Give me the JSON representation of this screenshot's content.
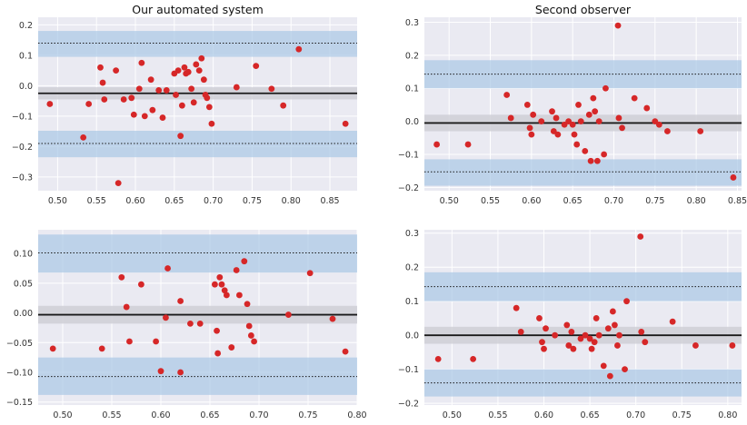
{
  "colors": {
    "axes_bg": "#eaeaf2",
    "grid": "#ffffff",
    "band_loa": "#a9c8e6",
    "band_mean": "#cfcfd6",
    "point": "#d62728",
    "mean_line": "#1a1a1a",
    "loa_line": "#1a1a1a",
    "tick_text": "#333333",
    "title_text": "#111111"
  },
  "chart_data": [
    {
      "type": "scatter",
      "title": "Our automated system",
      "xlabel": "",
      "ylabel": "",
      "xlim": [
        0.475,
        0.885
      ],
      "ylim": [
        -0.345,
        0.225
      ],
      "xticks": [
        0.5,
        0.55,
        0.6,
        0.65,
        0.7,
        0.75,
        0.8,
        0.85
      ],
      "xtick_labels": [
        "0.50",
        "0.55",
        "0.60",
        "0.65",
        "0.70",
        "0.75",
        "0.80",
        "0.85"
      ],
      "yticks": [
        -0.3,
        -0.2,
        -0.1,
        0.0,
        0.1,
        0.2
      ],
      "ytick_labels": [
        "−0.3",
        "−0.2",
        "−0.1",
        "0.0",
        "0.1",
        "0.2"
      ],
      "mean": -0.025,
      "mean_band": [
        -0.045,
        -0.005
      ],
      "upper_loa": 0.14,
      "upper_band": [
        0.095,
        0.18
      ],
      "lower_loa": -0.19,
      "lower_band": [
        -0.235,
        -0.148
      ],
      "points": [
        [
          0.49,
          -0.06
        ],
        [
          0.533,
          -0.17
        ],
        [
          0.54,
          -0.06
        ],
        [
          0.555,
          0.06
        ],
        [
          0.558,
          0.01
        ],
        [
          0.56,
          -0.045
        ],
        [
          0.575,
          0.05
        ],
        [
          0.578,
          -0.32
        ],
        [
          0.585,
          -0.045
        ],
        [
          0.595,
          -0.04
        ],
        [
          0.598,
          -0.095
        ],
        [
          0.605,
          -0.01
        ],
        [
          0.608,
          0.075
        ],
        [
          0.612,
          -0.1
        ],
        [
          0.62,
          0.02
        ],
        [
          0.622,
          -0.08
        ],
        [
          0.63,
          -0.015
        ],
        [
          0.635,
          -0.105
        ],
        [
          0.64,
          -0.015
        ],
        [
          0.65,
          0.04
        ],
        [
          0.652,
          -0.03
        ],
        [
          0.655,
          0.05
        ],
        [
          0.658,
          -0.165
        ],
        [
          0.66,
          -0.065
        ],
        [
          0.663,
          0.06
        ],
        [
          0.665,
          0.04
        ],
        [
          0.668,
          0.045
        ],
        [
          0.672,
          -0.01
        ],
        [
          0.675,
          -0.055
        ],
        [
          0.678,
          0.07
        ],
        [
          0.682,
          0.05
        ],
        [
          0.685,
          0.09
        ],
        [
          0.688,
          0.02
        ],
        [
          0.69,
          -0.03
        ],
        [
          0.692,
          -0.04
        ],
        [
          0.695,
          -0.07
        ],
        [
          0.698,
          -0.125
        ],
        [
          0.73,
          -0.005
        ],
        [
          0.755,
          0.065
        ],
        [
          0.775,
          -0.01
        ],
        [
          0.79,
          -0.065
        ],
        [
          0.81,
          0.12
        ],
        [
          0.87,
          -0.125
        ]
      ]
    },
    {
      "type": "scatter",
      "title": "Second observer",
      "xlabel": "",
      "ylabel": "",
      "xlim": [
        0.47,
        0.855
      ],
      "ylim": [
        -0.21,
        0.315
      ],
      "xticks": [
        0.5,
        0.55,
        0.6,
        0.65,
        0.7,
        0.75,
        0.8,
        0.85
      ],
      "xtick_labels": [
        "0.50",
        "0.55",
        "0.60",
        "0.65",
        "0.70",
        "0.75",
        "0.80",
        "0.85"
      ],
      "yticks": [
        -0.2,
        -0.1,
        0.0,
        0.1,
        0.2,
        0.3
      ],
      "ytick_labels": [
        "−0.2",
        "−0.1",
        "0.0",
        "0.1",
        "0.2",
        "0.3"
      ],
      "mean": -0.005,
      "mean_band": [
        -0.03,
        0.02
      ],
      "upper_loa": 0.143,
      "upper_band": [
        0.1,
        0.185
      ],
      "lower_loa": -0.153,
      "lower_band": [
        -0.195,
        -0.115
      ],
      "points": [
        [
          0.485,
          -0.07
        ],
        [
          0.523,
          -0.07
        ],
        [
          0.57,
          0.08
        ],
        [
          0.575,
          0.01
        ],
        [
          0.595,
          0.05
        ],
        [
          0.598,
          -0.02
        ],
        [
          0.6,
          -0.04
        ],
        [
          0.602,
          0.02
        ],
        [
          0.612,
          0.0
        ],
        [
          0.625,
          0.03
        ],
        [
          0.627,
          -0.03
        ],
        [
          0.63,
          0.01
        ],
        [
          0.632,
          -0.04
        ],
        [
          0.64,
          -0.01
        ],
        [
          0.645,
          0.0
        ],
        [
          0.65,
          -0.01
        ],
        [
          0.652,
          -0.04
        ],
        [
          0.655,
          -0.07
        ],
        [
          0.657,
          0.05
        ],
        [
          0.66,
          0.0
        ],
        [
          0.665,
          -0.09
        ],
        [
          0.67,
          0.02
        ],
        [
          0.672,
          -0.12
        ],
        [
          0.675,
          0.07
        ],
        [
          0.677,
          0.03
        ],
        [
          0.68,
          -0.12
        ],
        [
          0.682,
          0.0
        ],
        [
          0.688,
          -0.1
        ],
        [
          0.69,
          0.1
        ],
        [
          0.705,
          0.29
        ],
        [
          0.706,
          0.01
        ],
        [
          0.71,
          -0.02
        ],
        [
          0.725,
          0.07
        ],
        [
          0.74,
          0.04
        ],
        [
          0.75,
          0.0
        ],
        [
          0.755,
          -0.01
        ],
        [
          0.765,
          -0.03
        ],
        [
          0.805,
          -0.03
        ],
        [
          0.845,
          -0.17
        ]
      ]
    },
    {
      "type": "scatter",
      "title": "",
      "xlabel": "",
      "ylabel": "",
      "xlim": [
        0.475,
        0.8
      ],
      "ylim": [
        -0.155,
        0.14
      ],
      "xticks": [
        0.5,
        0.55,
        0.6,
        0.65,
        0.7,
        0.75,
        0.8
      ],
      "xtick_labels": [
        "0.50",
        "0.55",
        "0.60",
        "0.65",
        "0.70",
        "0.75",
        "0.80"
      ],
      "yticks": [
        -0.15,
        -0.1,
        -0.05,
        0.0,
        0.05,
        0.1
      ],
      "ytick_labels": [
        "−0.15",
        "−0.10",
        "−0.05",
        "0.00",
        "0.05",
        "0.10"
      ],
      "mean": -0.003,
      "mean_band": [
        -0.018,
        0.012
      ],
      "upper_loa": 0.101,
      "upper_band": [
        0.068,
        0.132
      ],
      "lower_loa": -0.107,
      "lower_band": [
        -0.138,
        -0.075
      ],
      "points": [
        [
          0.49,
          -0.06
        ],
        [
          0.54,
          -0.06
        ],
        [
          0.56,
          0.06
        ],
        [
          0.565,
          0.01
        ],
        [
          0.568,
          -0.048
        ],
        [
          0.58,
          0.048
        ],
        [
          0.595,
          -0.048
        ],
        [
          0.6,
          -0.098
        ],
        [
          0.605,
          -0.008
        ],
        [
          0.607,
          0.075
        ],
        [
          0.62,
          0.02
        ],
        [
          0.62,
          -0.1
        ],
        [
          0.63,
          -0.018
        ],
        [
          0.64,
          -0.018
        ],
        [
          0.655,
          0.048
        ],
        [
          0.657,
          -0.03
        ],
        [
          0.658,
          -0.068
        ],
        [
          0.66,
          0.06
        ],
        [
          0.662,
          0.048
        ],
        [
          0.665,
          0.038
        ],
        [
          0.667,
          0.03
        ],
        [
          0.672,
          -0.058
        ],
        [
          0.677,
          0.072
        ],
        [
          0.68,
          0.03
        ],
        [
          0.685,
          0.087
        ],
        [
          0.688,
          0.015
        ],
        [
          0.69,
          -0.022
        ],
        [
          0.692,
          -0.038
        ],
        [
          0.695,
          -0.048
        ],
        [
          0.73,
          -0.003
        ],
        [
          0.752,
          0.067
        ],
        [
          0.775,
          -0.01
        ],
        [
          0.788,
          -0.065
        ]
      ]
    },
    {
      "type": "scatter",
      "title": "",
      "xlabel": "",
      "ylabel": "",
      "xlim": [
        0.47,
        0.815
      ],
      "ylim": [
        -0.205,
        0.31
      ],
      "xticks": [
        0.5,
        0.55,
        0.6,
        0.65,
        0.7,
        0.75,
        0.8
      ],
      "xtick_labels": [
        "0.50",
        "0.55",
        "0.60",
        "0.65",
        "0.70",
        "0.75",
        "0.80"
      ],
      "yticks": [
        -0.2,
        -0.1,
        0.0,
        0.1,
        0.2,
        0.3
      ],
      "ytick_labels": [
        "−0.2",
        "−0.1",
        "0.0",
        "0.1",
        "0.2",
        "0.3"
      ],
      "mean": 0.0,
      "mean_band": [
        -0.025,
        0.025
      ],
      "upper_loa": 0.143,
      "upper_band": [
        0.1,
        0.185
      ],
      "lower_loa": -0.14,
      "lower_band": [
        -0.18,
        -0.1
      ],
      "points": [
        [
          0.485,
          -0.07
        ],
        [
          0.523,
          -0.07
        ],
        [
          0.57,
          0.08
        ],
        [
          0.575,
          0.01
        ],
        [
          0.595,
          0.05
        ],
        [
          0.598,
          -0.02
        ],
        [
          0.6,
          -0.04
        ],
        [
          0.602,
          0.02
        ],
        [
          0.612,
          0.0
        ],
        [
          0.625,
          0.03
        ],
        [
          0.627,
          -0.03
        ],
        [
          0.63,
          0.01
        ],
        [
          0.632,
          -0.04
        ],
        [
          0.64,
          -0.01
        ],
        [
          0.645,
          0.0
        ],
        [
          0.65,
          -0.01
        ],
        [
          0.652,
          -0.04
        ],
        [
          0.655,
          -0.02
        ],
        [
          0.657,
          0.05
        ],
        [
          0.66,
          0.0
        ],
        [
          0.665,
          -0.09
        ],
        [
          0.67,
          0.02
        ],
        [
          0.672,
          -0.12
        ],
        [
          0.675,
          0.07
        ],
        [
          0.677,
          0.03
        ],
        [
          0.68,
          -0.03
        ],
        [
          0.682,
          0.0
        ],
        [
          0.688,
          -0.1
        ],
        [
          0.69,
          0.1
        ],
        [
          0.705,
          0.29
        ],
        [
          0.706,
          0.01
        ],
        [
          0.71,
          -0.02
        ],
        [
          0.74,
          0.04
        ],
        [
          0.765,
          -0.03
        ],
        [
          0.805,
          -0.03
        ]
      ]
    }
  ]
}
